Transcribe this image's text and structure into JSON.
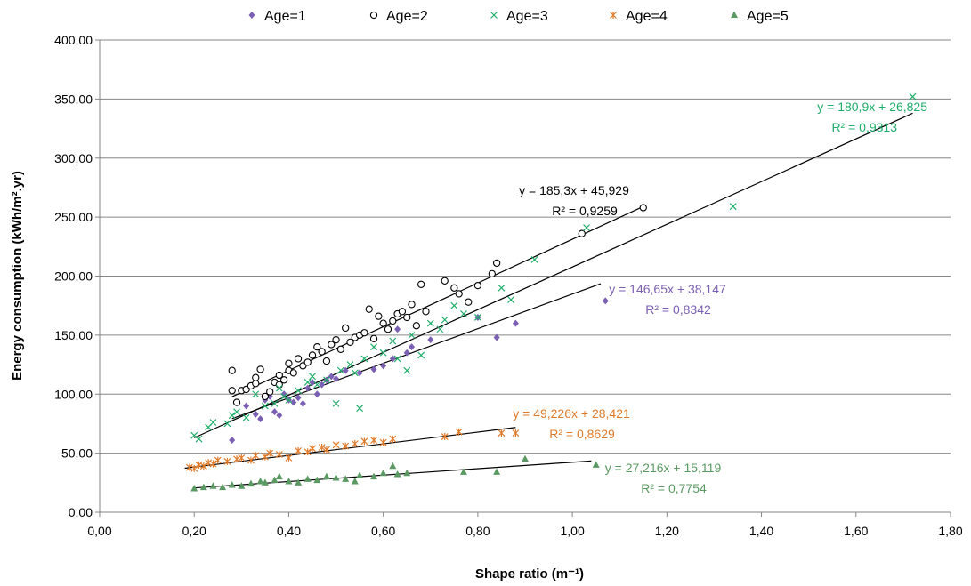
{
  "chart_data": {
    "type": "scatter",
    "xlabel": "Shape ratio (m⁻¹)",
    "ylabel": "Energy consumption (kWh/m².yr)",
    "xlim": [
      0,
      1.8
    ],
    "ylim": [
      0,
      400
    ],
    "x_ticks": [
      "0,00",
      "0,20",
      "0,40",
      "0,60",
      "0,80",
      "1,00",
      "1,20",
      "1,40",
      "1,60",
      "1,80"
    ],
    "y_ticks": [
      "0,00",
      "50,00",
      "100,00",
      "150,00",
      "200,00",
      "250,00",
      "300,00",
      "350,00",
      "400,00"
    ],
    "grid": "horizontal",
    "legend": "top",
    "series": [
      {
        "name": "Age=1",
        "marker": "diamond",
        "color": "#7b5fb3",
        "points": [
          [
            0.28,
            61
          ],
          [
            0.31,
            90
          ],
          [
            0.33,
            83
          ],
          [
            0.34,
            79
          ],
          [
            0.35,
            95
          ],
          [
            0.36,
            98
          ],
          [
            0.37,
            85
          ],
          [
            0.38,
            82
          ],
          [
            0.39,
            100
          ],
          [
            0.4,
            95
          ],
          [
            0.41,
            93
          ],
          [
            0.42,
            97
          ],
          [
            0.43,
            92
          ],
          [
            0.44,
            105
          ],
          [
            0.45,
            110
          ],
          [
            0.46,
            100
          ],
          [
            0.47,
            108
          ],
          [
            0.48,
            112
          ],
          [
            0.49,
            115
          ],
          [
            0.5,
            113
          ],
          [
            0.52,
            120
          ],
          [
            0.55,
            118
          ],
          [
            0.58,
            121
          ],
          [
            0.6,
            124
          ],
          [
            0.62,
            130
          ],
          [
            0.63,
            155
          ],
          [
            0.65,
            135
          ],
          [
            0.66,
            140
          ],
          [
            0.7,
            146
          ],
          [
            0.8,
            165
          ],
          [
            0.84,
            148
          ],
          [
            0.88,
            160
          ],
          [
            1.07,
            179
          ]
        ],
        "trend": {
          "slope": 146.65,
          "intercept": 38.147,
          "x_range": [
            0.28,
            1.06
          ],
          "equation": "y = 146,65x + 38,147",
          "r2": "R² = 0,8342"
        }
      },
      {
        "name": "Age=2",
        "marker": "circle",
        "color": "#000000",
        "points": [
          [
            0.28,
            103
          ],
          [
            0.28,
            120
          ],
          [
            0.29,
            93
          ],
          [
            0.3,
            103
          ],
          [
            0.31,
            104
          ],
          [
            0.32,
            107
          ],
          [
            0.33,
            109
          ],
          [
            0.33,
            114
          ],
          [
            0.34,
            121
          ],
          [
            0.35,
            98
          ],
          [
            0.36,
            102
          ],
          [
            0.37,
            110
          ],
          [
            0.38,
            108
          ],
          [
            0.38,
            116
          ],
          [
            0.39,
            112
          ],
          [
            0.4,
            120
          ],
          [
            0.4,
            126
          ],
          [
            0.41,
            118
          ],
          [
            0.42,
            130
          ],
          [
            0.43,
            124
          ],
          [
            0.44,
            127
          ],
          [
            0.45,
            133
          ],
          [
            0.46,
            140
          ],
          [
            0.47,
            136
          ],
          [
            0.48,
            128
          ],
          [
            0.49,
            142
          ],
          [
            0.5,
            146
          ],
          [
            0.51,
            138
          ],
          [
            0.52,
            156
          ],
          [
            0.53,
            144
          ],
          [
            0.54,
            148
          ],
          [
            0.55,
            150
          ],
          [
            0.56,
            152
          ],
          [
            0.57,
            172
          ],
          [
            0.58,
            147
          ],
          [
            0.59,
            166
          ],
          [
            0.6,
            160
          ],
          [
            0.61,
            155
          ],
          [
            0.62,
            162
          ],
          [
            0.63,
            168
          ],
          [
            0.64,
            170
          ],
          [
            0.65,
            165
          ],
          [
            0.66,
            176
          ],
          [
            0.67,
            158
          ],
          [
            0.68,
            193
          ],
          [
            0.69,
            170
          ],
          [
            0.73,
            196
          ],
          [
            0.75,
            190
          ],
          [
            0.76,
            185
          ],
          [
            0.78,
            178
          ],
          [
            0.8,
            192
          ],
          [
            0.83,
            202
          ],
          [
            0.84,
            211
          ],
          [
            1.02,
            236
          ],
          [
            1.15,
            258
          ]
        ],
        "trend": {
          "slope": 185.3,
          "intercept": 45.929,
          "x_range": [
            0.28,
            1.15
          ],
          "equation": "y = 185,3x + 45,929",
          "r2": "R² = 0,9259"
        }
      },
      {
        "name": "Age=3",
        "marker": "x",
        "color": "#1fae6a",
        "points": [
          [
            0.2,
            65
          ],
          [
            0.21,
            62
          ],
          [
            0.23,
            72
          ],
          [
            0.24,
            76
          ],
          [
            0.27,
            75
          ],
          [
            0.28,
            82
          ],
          [
            0.29,
            85
          ],
          [
            0.31,
            80
          ],
          [
            0.33,
            100
          ],
          [
            0.35,
            90
          ],
          [
            0.37,
            92
          ],
          [
            0.38,
            105
          ],
          [
            0.39,
            98
          ],
          [
            0.4,
            95
          ],
          [
            0.42,
            103
          ],
          [
            0.44,
            110
          ],
          [
            0.45,
            115
          ],
          [
            0.46,
            108
          ],
          [
            0.48,
            112
          ],
          [
            0.5,
            92
          ],
          [
            0.51,
            120
          ],
          [
            0.53,
            125
          ],
          [
            0.54,
            118
          ],
          [
            0.55,
            88
          ],
          [
            0.56,
            130
          ],
          [
            0.58,
            140
          ],
          [
            0.6,
            135
          ],
          [
            0.62,
            145
          ],
          [
            0.63,
            130
          ],
          [
            0.65,
            120
          ],
          [
            0.66,
            150
          ],
          [
            0.68,
            133
          ],
          [
            0.7,
            160
          ],
          [
            0.72,
            155
          ],
          [
            0.73,
            163
          ],
          [
            0.75,
            175
          ],
          [
            0.77,
            168
          ],
          [
            0.8,
            165
          ],
          [
            0.85,
            190
          ],
          [
            0.87,
            180
          ],
          [
            0.92,
            214
          ],
          [
            1.03,
            241
          ],
          [
            1.34,
            259
          ],
          [
            1.72,
            352
          ]
        ],
        "trend": {
          "slope": 180.9,
          "intercept": 26.825,
          "x_range": [
            0.2,
            1.72
          ],
          "equation": "y = 180,9x + 26,825",
          "r2": "R² = 0,9313"
        }
      },
      {
        "name": "Age=4",
        "marker": "star",
        "color": "#e07b2a",
        "points": [
          [
            0.19,
            38
          ],
          [
            0.2,
            37
          ],
          [
            0.21,
            40
          ],
          [
            0.22,
            39
          ],
          [
            0.23,
            42
          ],
          [
            0.24,
            41
          ],
          [
            0.25,
            44
          ],
          [
            0.27,
            43
          ],
          [
            0.29,
            45
          ],
          [
            0.3,
            46
          ],
          [
            0.32,
            44
          ],
          [
            0.33,
            48
          ],
          [
            0.35,
            47
          ],
          [
            0.36,
            50
          ],
          [
            0.38,
            49
          ],
          [
            0.4,
            46
          ],
          [
            0.42,
            52
          ],
          [
            0.44,
            51
          ],
          [
            0.45,
            54
          ],
          [
            0.47,
            55
          ],
          [
            0.48,
            53
          ],
          [
            0.5,
            57
          ],
          [
            0.52,
            56
          ],
          [
            0.54,
            58
          ],
          [
            0.56,
            60
          ],
          [
            0.58,
            61
          ],
          [
            0.6,
            59
          ],
          [
            0.62,
            62
          ],
          [
            0.73,
            64
          ],
          [
            0.76,
            68
          ],
          [
            0.85,
            67
          ],
          [
            0.88,
            67
          ]
        ],
        "trend": {
          "slope": 49.226,
          "intercept": 28.421,
          "x_range": [
            0.18,
            0.88
          ],
          "equation": "y = 49,226x + 28,421",
          "r2": "R² = 0,8629"
        }
      },
      {
        "name": "Age=5",
        "marker": "triangle",
        "color": "#5a9a62",
        "points": [
          [
            0.2,
            20
          ],
          [
            0.22,
            21
          ],
          [
            0.24,
            22
          ],
          [
            0.26,
            21
          ],
          [
            0.28,
            23
          ],
          [
            0.3,
            22
          ],
          [
            0.32,
            24
          ],
          [
            0.34,
            26
          ],
          [
            0.35,
            25
          ],
          [
            0.37,
            27
          ],
          [
            0.38,
            30
          ],
          [
            0.4,
            26
          ],
          [
            0.42,
            25
          ],
          [
            0.44,
            28
          ],
          [
            0.46,
            27
          ],
          [
            0.48,
            30
          ],
          [
            0.5,
            29
          ],
          [
            0.52,
            28
          ],
          [
            0.54,
            26
          ],
          [
            0.55,
            31
          ],
          [
            0.58,
            30
          ],
          [
            0.6,
            33
          ],
          [
            0.62,
            39
          ],
          [
            0.63,
            32
          ],
          [
            0.65,
            33
          ],
          [
            0.77,
            34
          ],
          [
            0.84,
            34
          ],
          [
            0.9,
            45
          ],
          [
            1.05,
            40
          ]
        ],
        "trend": {
          "slope": 27.216,
          "intercept": 15.119,
          "x_range": [
            0.2,
            1.04
          ],
          "equation": "y = 27,216x + 15,119",
          "r2": "R² = 0,7754"
        }
      }
    ]
  }
}
